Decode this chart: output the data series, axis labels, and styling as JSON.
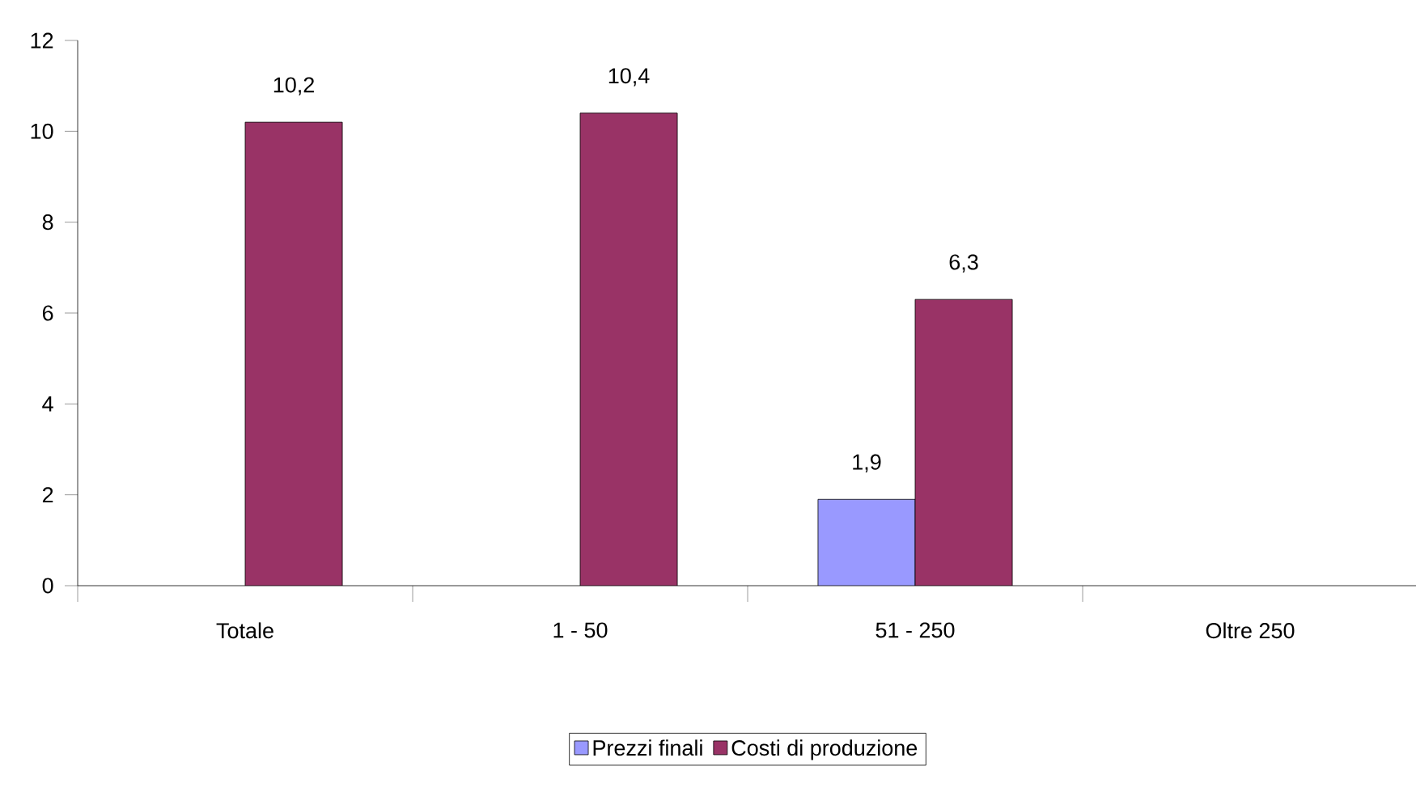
{
  "chart_data": {
    "type": "bar",
    "categories": [
      "Totale",
      "1 - 50",
      "51 - 250",
      "Oltre 250"
    ],
    "series": [
      {
        "name": "Prezzi finali",
        "color": "#9999ff",
        "values": [
          null,
          null,
          1.9,
          null
        ],
        "value_labels": [
          null,
          null,
          "1,9",
          null
        ]
      },
      {
        "name": "Costi di produzione",
        "color": "#993366",
        "values": [
          10.2,
          10.4,
          6.3,
          null
        ],
        "value_labels": [
          "10,2",
          "10,4",
          "6,3",
          null
        ]
      }
    ],
    "ylim": [
      0,
      12
    ],
    "yticks": [
      0,
      2,
      4,
      6,
      8,
      10,
      12
    ],
    "legend": "bottom"
  }
}
